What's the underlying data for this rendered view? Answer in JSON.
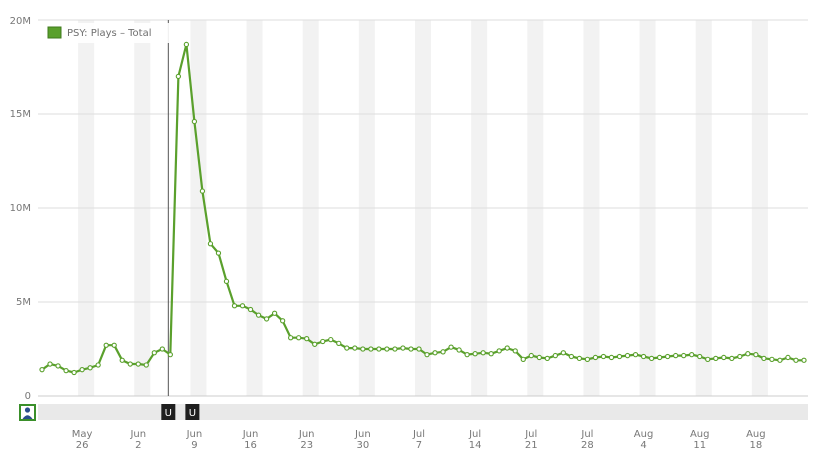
{
  "chart_data": {
    "type": "line",
    "legend": {
      "label": "PSY: Plays – Total",
      "placement": "top-left"
    },
    "series": [
      {
        "name": "PSY: Plays – Total",
        "color": "#5aa02c",
        "x": [
          "2012-05-21",
          "2012-05-22",
          "2012-05-23",
          "2012-05-24",
          "2012-05-25",
          "2012-05-26",
          "2012-05-27",
          "2012-05-28",
          "2012-05-29",
          "2012-05-30",
          "2012-05-31",
          "2012-06-01",
          "2012-06-02",
          "2012-06-03",
          "2012-06-04",
          "2012-06-05",
          "2012-06-06",
          "2012-06-07",
          "2012-06-08",
          "2012-06-09",
          "2012-06-10",
          "2012-06-11",
          "2012-06-12",
          "2012-06-13",
          "2012-06-14",
          "2012-06-15",
          "2012-06-16",
          "2012-06-17",
          "2012-06-18",
          "2012-06-19",
          "2012-06-20",
          "2012-06-21",
          "2012-06-22",
          "2012-06-23",
          "2012-06-24",
          "2012-06-25",
          "2012-06-26",
          "2012-06-27",
          "2012-06-28",
          "2012-06-29",
          "2012-06-30",
          "2012-07-01",
          "2012-07-02",
          "2012-07-03",
          "2012-07-04",
          "2012-07-05",
          "2012-07-06",
          "2012-07-07",
          "2012-07-08",
          "2012-07-09",
          "2012-07-10",
          "2012-07-11",
          "2012-07-12",
          "2012-07-13",
          "2012-07-14",
          "2012-07-15",
          "2012-07-16",
          "2012-07-17",
          "2012-07-18",
          "2012-07-19",
          "2012-07-20",
          "2012-07-21",
          "2012-07-22",
          "2012-07-23",
          "2012-07-24",
          "2012-07-25",
          "2012-07-26",
          "2012-07-27",
          "2012-07-28",
          "2012-07-29",
          "2012-07-30",
          "2012-07-31",
          "2012-08-01",
          "2012-08-02",
          "2012-08-03",
          "2012-08-04",
          "2012-08-05",
          "2012-08-06",
          "2012-08-07",
          "2012-08-08",
          "2012-08-09",
          "2012-08-10",
          "2012-08-11",
          "2012-08-12",
          "2012-08-13",
          "2012-08-14",
          "2012-08-15",
          "2012-08-16",
          "2012-08-17",
          "2012-08-18",
          "2012-08-19",
          "2012-08-20",
          "2012-08-21",
          "2012-08-22",
          "2012-08-23",
          "2012-08-24"
        ],
        "values": [
          1.4,
          1.7,
          1.6,
          1.35,
          1.25,
          1.4,
          1.5,
          1.65,
          2.7,
          2.7,
          1.9,
          1.7,
          1.7,
          1.65,
          2.3,
          2.5,
          2.2,
          17.0,
          18.7,
          14.6,
          10.9,
          8.1,
          7.6,
          6.1,
          4.8,
          4.8,
          4.6,
          4.3,
          4.1,
          4.4,
          4.0,
          3.1,
          3.1,
          3.05,
          2.75,
          2.9,
          3.0,
          2.8,
          2.55,
          2.55,
          2.5,
          2.5,
          2.5,
          2.5,
          2.5,
          2.55,
          2.5,
          2.5,
          2.2,
          2.3,
          2.35,
          2.6,
          2.45,
          2.2,
          2.25,
          2.3,
          2.25,
          2.4,
          2.55,
          2.4,
          1.95,
          2.15,
          2.05,
          2.0,
          2.15,
          2.3,
          2.1,
          2.0,
          1.95,
          2.05,
          2.1,
          2.05,
          2.1,
          2.15,
          2.2,
          2.1,
          2.0,
          2.05,
          2.1,
          2.15,
          2.15,
          2.2,
          2.1,
          1.95,
          2.0,
          2.05,
          2.0,
          2.1,
          2.25,
          2.2,
          2.0,
          1.95,
          1.9,
          2.05,
          1.9,
          1.9
        ]
      }
    ],
    "y_unit": "M",
    "ylim": [
      0,
      20
    ],
    "yticks": [
      {
        "value": 0,
        "label": "0"
      },
      {
        "value": 5,
        "label": "5M"
      },
      {
        "value": 10,
        "label": "10M"
      },
      {
        "value": 15,
        "label": "15M"
      },
      {
        "value": 20,
        "label": "20M"
      }
    ],
    "xlim": [
      "2012-05-21",
      "2012-08-24"
    ],
    "xticks": [
      {
        "date": "2012-05-26",
        "month": "May",
        "day": "26"
      },
      {
        "date": "2012-06-02",
        "month": "Jun",
        "day": "2"
      },
      {
        "date": "2012-06-09",
        "month": "Jun",
        "day": "9"
      },
      {
        "date": "2012-06-16",
        "month": "Jun",
        "day": "16"
      },
      {
        "date": "2012-06-23",
        "month": "Jun",
        "day": "23"
      },
      {
        "date": "2012-06-30",
        "month": "Jun",
        "day": "30"
      },
      {
        "date": "2012-07-07",
        "month": "Jul",
        "day": "7"
      },
      {
        "date": "2012-07-14",
        "month": "Jul",
        "day": "14"
      },
      {
        "date": "2012-07-21",
        "month": "Jul",
        "day": "21"
      },
      {
        "date": "2012-07-28",
        "month": "Jul",
        "day": "28"
      },
      {
        "date": "2012-08-04",
        "month": "Aug",
        "day": "4"
      },
      {
        "date": "2012-08-11",
        "month": "Aug",
        "day": "11"
      },
      {
        "date": "2012-08-18",
        "month": "Aug",
        "day": "18"
      }
    ],
    "weekend_shading": true,
    "horizontal_grid": true,
    "annotation_line": {
      "date": "2012-06-05"
    },
    "event_markers": [
      {
        "date": "2012-06-05",
        "label": "U"
      },
      {
        "date": "2012-06-08",
        "label": "U"
      }
    ],
    "timeline_icon": "person-avatar-icon"
  }
}
